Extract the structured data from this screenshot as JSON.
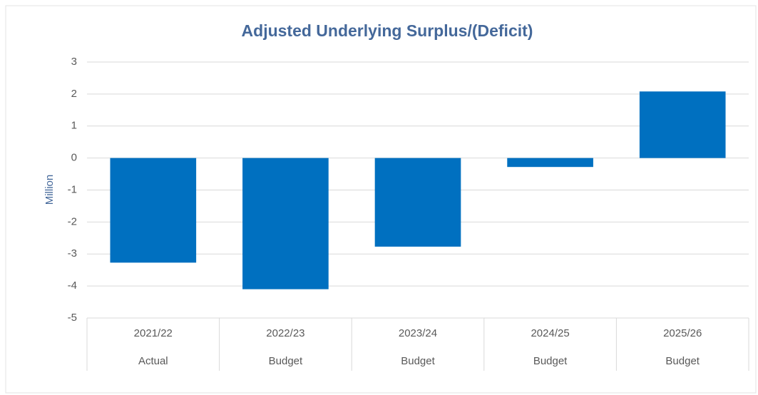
{
  "chart_data": {
    "type": "bar",
    "title": "Adjusted Underlying Surplus/(Deficit)",
    "y_label": "Million",
    "categories": [
      "2021/22",
      "2022/23",
      "2023/24",
      "2024/25",
      "2025/26"
    ],
    "category_sublabels": [
      "Actual",
      "Budget",
      "Budget",
      "Budget",
      "Budget"
    ],
    "values": [
      -3.27,
      -4.1,
      -2.77,
      -0.28,
      2.08
    ],
    "color": "#0070c0",
    "ylim": [
      -5,
      3
    ],
    "yticks": [
      -5,
      -4,
      -3,
      -2,
      -1,
      0,
      1,
      2,
      3
    ],
    "grid": true
  }
}
